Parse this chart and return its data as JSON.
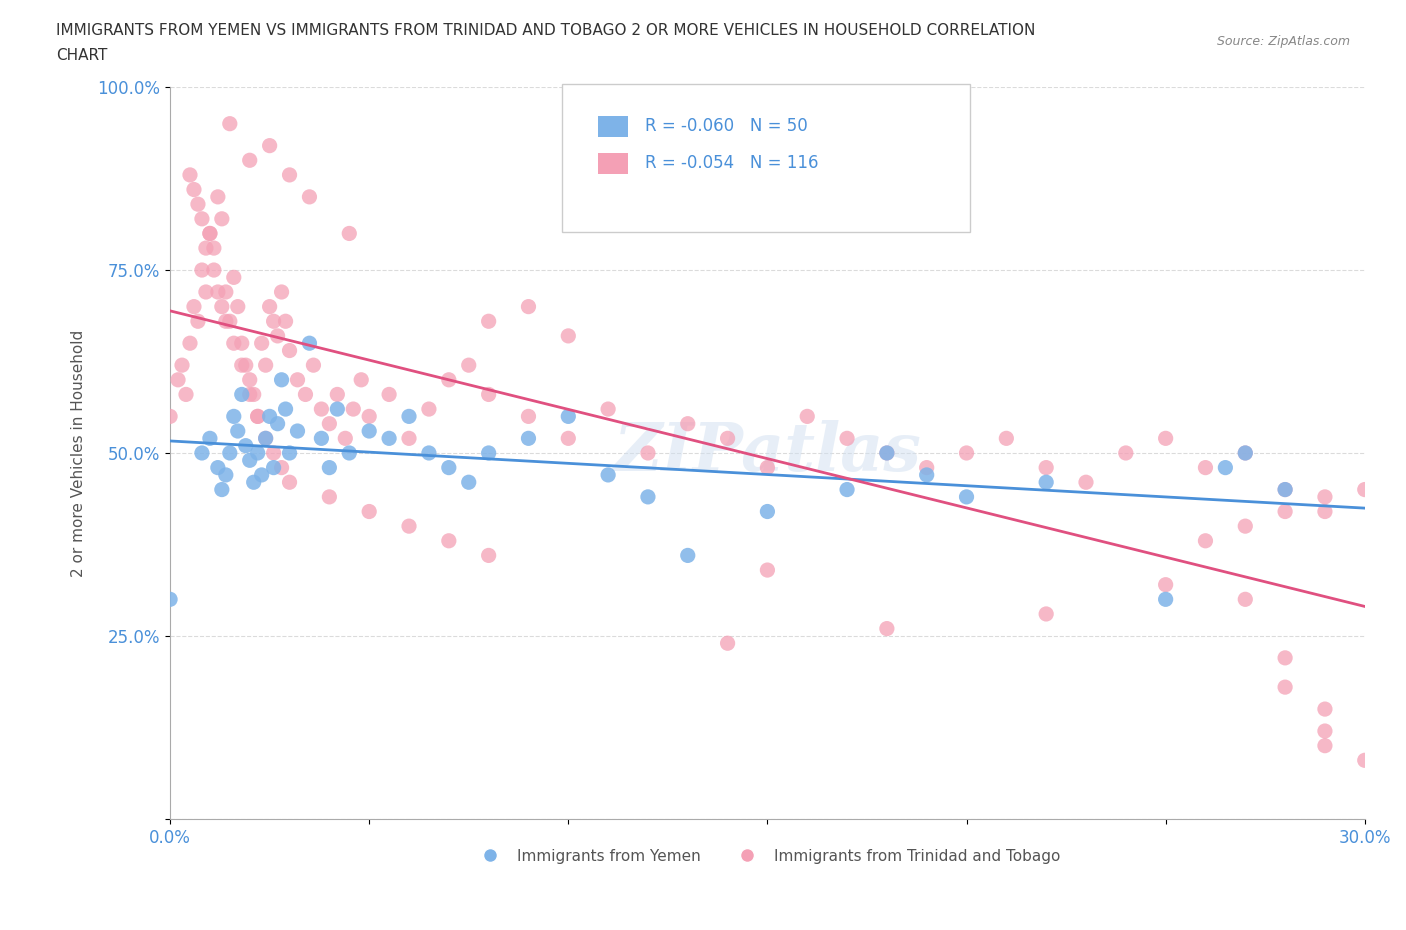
{
  "title_line1": "IMMIGRANTS FROM YEMEN VS IMMIGRANTS FROM TRINIDAD AND TOBAGO 2 OR MORE VEHICLES IN HOUSEHOLD CORRELATION",
  "title_line2": "CHART",
  "source_text": "Source: ZipAtlas.com",
  "xlabel": "",
  "ylabel": "2 or more Vehicles in Household",
  "xlim": [
    0.0,
    0.3
  ],
  "ylim": [
    0.0,
    1.0
  ],
  "xticks": [
    0.0,
    0.05,
    0.1,
    0.15,
    0.2,
    0.25,
    0.3
  ],
  "xticklabels": [
    "0.0%",
    "",
    "",
    "",
    "",
    "",
    "30.0%"
  ],
  "yticks": [
    0.0,
    0.25,
    0.5,
    0.75,
    1.0
  ],
  "yticklabels": [
    "",
    "25.0%",
    "50.0%",
    "75.0%",
    "100.0%"
  ],
  "series1_name": "Immigrants from Yemen",
  "series1_color": "#7eb3e8",
  "series1_R": -0.06,
  "series1_N": 50,
  "series2_name": "Immigrants from Trinidad and Tobago",
  "series2_color": "#f4a0b5",
  "series2_R": -0.054,
  "series2_N": 116,
  "line1_color": "#4a90d9",
  "line2_color": "#e05080",
  "background_color": "#ffffff",
  "grid_color": "#cccccc",
  "title_color": "#333333",
  "axis_label_color": "#555555",
  "tick_color": "#4a90d9",
  "watermark": "ZIPatlas",
  "series1_x": [
    0.0,
    0.008,
    0.01,
    0.012,
    0.013,
    0.014,
    0.015,
    0.016,
    0.017,
    0.018,
    0.019,
    0.02,
    0.021,
    0.022,
    0.023,
    0.024,
    0.025,
    0.026,
    0.027,
    0.028,
    0.029,
    0.03,
    0.032,
    0.035,
    0.038,
    0.04,
    0.042,
    0.045,
    0.05,
    0.055,
    0.06,
    0.065,
    0.07,
    0.075,
    0.08,
    0.09,
    0.1,
    0.11,
    0.12,
    0.13,
    0.15,
    0.17,
    0.19,
    0.2,
    0.22,
    0.25,
    0.27,
    0.28,
    0.265,
    0.18
  ],
  "series1_y": [
    0.3,
    0.5,
    0.52,
    0.48,
    0.45,
    0.47,
    0.5,
    0.55,
    0.53,
    0.58,
    0.51,
    0.49,
    0.46,
    0.5,
    0.47,
    0.52,
    0.55,
    0.48,
    0.54,
    0.6,
    0.56,
    0.5,
    0.53,
    0.65,
    0.52,
    0.48,
    0.56,
    0.5,
    0.53,
    0.52,
    0.55,
    0.5,
    0.48,
    0.46,
    0.5,
    0.52,
    0.55,
    0.47,
    0.44,
    0.36,
    0.42,
    0.45,
    0.47,
    0.44,
    0.46,
    0.3,
    0.5,
    0.45,
    0.48,
    0.5
  ],
  "series2_x": [
    0.0,
    0.002,
    0.003,
    0.004,
    0.005,
    0.006,
    0.007,
    0.008,
    0.009,
    0.01,
    0.011,
    0.012,
    0.013,
    0.014,
    0.015,
    0.016,
    0.017,
    0.018,
    0.019,
    0.02,
    0.021,
    0.022,
    0.023,
    0.024,
    0.025,
    0.026,
    0.027,
    0.028,
    0.029,
    0.03,
    0.032,
    0.034,
    0.036,
    0.038,
    0.04,
    0.042,
    0.044,
    0.046,
    0.048,
    0.05,
    0.055,
    0.06,
    0.065,
    0.07,
    0.075,
    0.08,
    0.09,
    0.1,
    0.11,
    0.12,
    0.13,
    0.14,
    0.15,
    0.16,
    0.17,
    0.18,
    0.19,
    0.2,
    0.21,
    0.22,
    0.23,
    0.24,
    0.25,
    0.26,
    0.27,
    0.28,
    0.08,
    0.09,
    0.1,
    0.03,
    0.02,
    0.015,
    0.025,
    0.035,
    0.045,
    0.005,
    0.006,
    0.007,
    0.008,
    0.009,
    0.01,
    0.011,
    0.012,
    0.013,
    0.014,
    0.016,
    0.018,
    0.02,
    0.022,
    0.024,
    0.026,
    0.028,
    0.03,
    0.04,
    0.05,
    0.06,
    0.07,
    0.08,
    0.15,
    0.25,
    0.27,
    0.22,
    0.18,
    0.14,
    0.28,
    0.28,
    0.29,
    0.29,
    0.29,
    0.3,
    0.28,
    0.29,
    0.29,
    0.3,
    0.27,
    0.26
  ],
  "series2_y": [
    0.55,
    0.6,
    0.62,
    0.58,
    0.65,
    0.7,
    0.68,
    0.75,
    0.72,
    0.8,
    0.78,
    0.85,
    0.82,
    0.72,
    0.68,
    0.74,
    0.7,
    0.65,
    0.62,
    0.6,
    0.58,
    0.55,
    0.65,
    0.62,
    0.7,
    0.68,
    0.66,
    0.72,
    0.68,
    0.64,
    0.6,
    0.58,
    0.62,
    0.56,
    0.54,
    0.58,
    0.52,
    0.56,
    0.6,
    0.55,
    0.58,
    0.52,
    0.56,
    0.6,
    0.62,
    0.58,
    0.55,
    0.52,
    0.56,
    0.5,
    0.54,
    0.52,
    0.48,
    0.55,
    0.52,
    0.5,
    0.48,
    0.5,
    0.52,
    0.48,
    0.46,
    0.5,
    0.52,
    0.48,
    0.5,
    0.45,
    0.68,
    0.7,
    0.66,
    0.88,
    0.9,
    0.95,
    0.92,
    0.85,
    0.8,
    0.88,
    0.86,
    0.84,
    0.82,
    0.78,
    0.8,
    0.75,
    0.72,
    0.7,
    0.68,
    0.65,
    0.62,
    0.58,
    0.55,
    0.52,
    0.5,
    0.48,
    0.46,
    0.44,
    0.42,
    0.4,
    0.38,
    0.36,
    0.34,
    0.32,
    0.3,
    0.28,
    0.26,
    0.24,
    0.22,
    0.18,
    0.15,
    0.12,
    0.1,
    0.08,
    0.42,
    0.42,
    0.44,
    0.45,
    0.4,
    0.38
  ]
}
